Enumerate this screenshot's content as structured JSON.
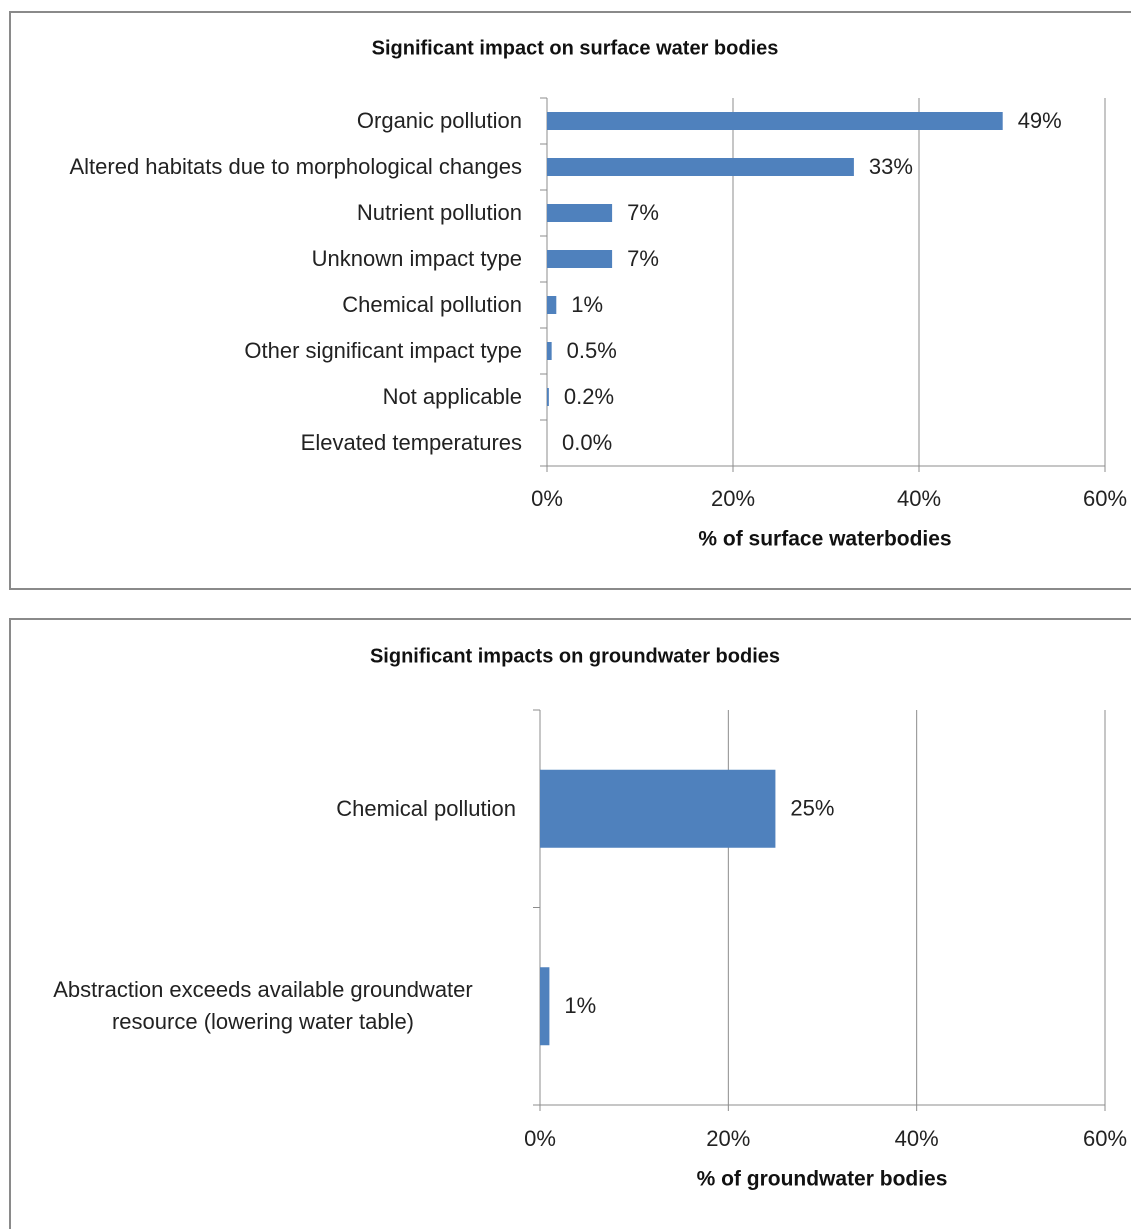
{
  "chart_data": [
    {
      "type": "barh",
      "title": "Significant impact on surface water bodies",
      "categories": [
        "Organic pollution",
        "Altered habitats due to morphological changes",
        "Nutrient pollution",
        "Unknown impact type",
        "Chemical pollution",
        "Other significant impact type",
        "Not applicable",
        "Elevated temperatures"
      ],
      "values": [
        49,
        33,
        7,
        7,
        1,
        0.5,
        0.2,
        0.0
      ],
      "value_labels": [
        "49%",
        "33%",
        "7%",
        "7%",
        "1%",
        "0.5%",
        "0.2%",
        "0.0%"
      ],
      "color": "#4f81bd",
      "xlabel": "% of surface waterbodies",
      "xlim": [
        0,
        60
      ],
      "xticks": [
        {
          "value": 0,
          "label": "0%"
        },
        {
          "value": 20,
          "label": "20%"
        },
        {
          "value": 40,
          "label": "40%"
        },
        {
          "value": 60,
          "label": "60%"
        }
      ],
      "grid": true
    },
    {
      "type": "barh",
      "title": "Significant impacts on groundwater bodies",
      "categories": [
        "Chemical pollution",
        "Abstraction exceeds available groundwater resource (lowering water table)"
      ],
      "values": [
        25,
        1
      ],
      "value_labels": [
        "25%",
        "1%"
      ],
      "color": "#4f81bd",
      "xlabel": "% of groundwater bodies",
      "xlim": [
        0,
        60
      ],
      "xticks": [
        {
          "value": 0,
          "label": "0%"
        },
        {
          "value": 20,
          "label": "20%"
        },
        {
          "value": 40,
          "label": "40%"
        },
        {
          "value": 60,
          "label": "60%"
        }
      ],
      "grid": true
    }
  ]
}
